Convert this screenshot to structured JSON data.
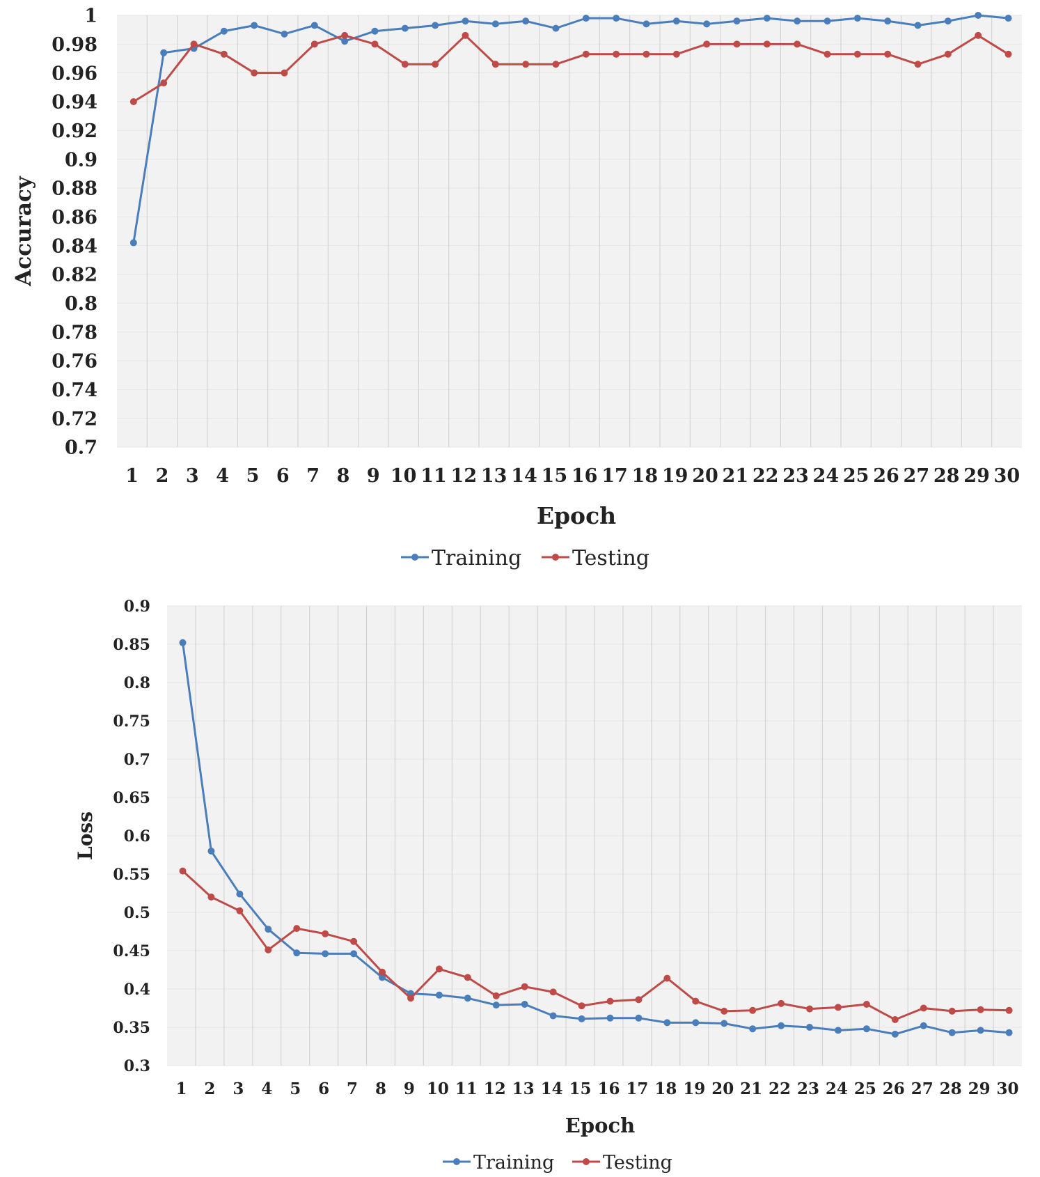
{
  "chart_data": [
    {
      "type": "line",
      "xlabel": "Epoch",
      "ylabel": "Accuracy",
      "ylim": [
        0.7,
        1.0
      ],
      "ystep": 0.02,
      "yticks": [
        "0.7",
        "0.72",
        "0.74",
        "0.76",
        "0.78",
        "0.8",
        "0.82",
        "0.84",
        "0.86",
        "0.88",
        "0.9",
        "0.92",
        "0.94",
        "0.96",
        "0.98",
        "1"
      ],
      "categories": [
        "1",
        "2",
        "3",
        "4",
        "5",
        "6",
        "7",
        "8",
        "9",
        "10",
        "11",
        "12",
        "13",
        "14",
        "15",
        "16",
        "17",
        "18",
        "19",
        "20",
        "21",
        "22",
        "23",
        "24",
        "25",
        "26",
        "27",
        "28",
        "29",
        "30"
      ],
      "grid": true,
      "legend_position": "bottom",
      "series": [
        {
          "name": "Training",
          "color": "#4a7ebb",
          "values": [
            0.842,
            0.974,
            0.977,
            0.989,
            0.993,
            0.987,
            0.993,
            0.982,
            0.989,
            0.991,
            0.993,
            0.996,
            0.994,
            0.996,
            0.991,
            0.998,
            0.998,
            0.994,
            0.996,
            0.994,
            0.996,
            0.998,
            0.996,
            0.996,
            0.998,
            0.996,
            0.993,
            0.996,
            1.0,
            0.998
          ]
        },
        {
          "name": "Testing",
          "color": "#be4b48",
          "values": [
            0.94,
            0.953,
            0.98,
            0.973,
            0.96,
            0.96,
            0.98,
            0.986,
            0.98,
            0.966,
            0.966,
            0.986,
            0.966,
            0.966,
            0.966,
            0.973,
            0.973,
            0.973,
            0.973,
            0.98,
            0.98,
            0.98,
            0.98,
            0.973,
            0.973,
            0.973,
            0.966,
            0.973,
            0.986,
            0.973
          ]
        }
      ]
    },
    {
      "type": "line",
      "xlabel": "Epoch",
      "ylabel": "Loss",
      "ylim": [
        0.3,
        0.9
      ],
      "ystep": 0.05,
      "yticks": [
        "0.3",
        "0.35",
        "0.4",
        "0.45",
        "0.5",
        "0.55",
        "0.6",
        "0.65",
        "0.7",
        "0.75",
        "0.8",
        "0.85",
        "0.9"
      ],
      "categories": [
        "1",
        "2",
        "3",
        "4",
        "5",
        "6",
        "7",
        "8",
        "9",
        "10",
        "11",
        "12",
        "13",
        "14",
        "15",
        "16",
        "17",
        "18",
        "19",
        "20",
        "21",
        "22",
        "23",
        "24",
        "25",
        "26",
        "27",
        "28",
        "29",
        "30"
      ],
      "grid": true,
      "legend_position": "bottom",
      "series": [
        {
          "name": "Training",
          "color": "#4a7ebb",
          "values": [
            0.852,
            0.58,
            0.524,
            0.478,
            0.447,
            0.446,
            0.446,
            0.415,
            0.394,
            0.392,
            0.388,
            0.379,
            0.38,
            0.365,
            0.361,
            0.362,
            0.362,
            0.356,
            0.356,
            0.355,
            0.348,
            0.352,
            0.35,
            0.346,
            0.348,
            0.341,
            0.352,
            0.343,
            0.346,
            0.343
          ]
        },
        {
          "name": "Testing",
          "color": "#be4b48",
          "values": [
            0.554,
            0.52,
            0.502,
            0.451,
            0.479,
            0.472,
            0.462,
            0.422,
            0.388,
            0.426,
            0.415,
            0.391,
            0.403,
            0.396,
            0.378,
            0.384,
            0.386,
            0.414,
            0.384,
            0.371,
            0.372,
            0.381,
            0.374,
            0.376,
            0.38,
            0.36,
            0.375,
            0.371,
            0.373,
            0.372
          ]
        }
      ]
    }
  ]
}
